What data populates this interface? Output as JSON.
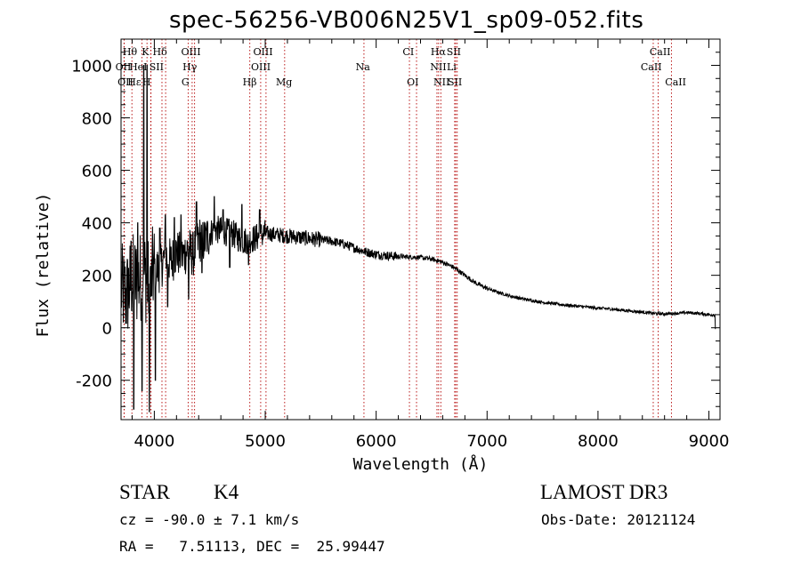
{
  "chart_data": {
    "type": "line",
    "title": "spec-56256-VB006N25V1_sp09-052.fits",
    "xlabel": "Wavelength (Å)",
    "ylabel": "Flux (relative)",
    "xlim": [
      3700,
      9100
    ],
    "ylim": [
      -350,
      1100
    ],
    "xticks": [
      4000,
      5000,
      6000,
      7000,
      8000,
      9000
    ],
    "yticks": [
      -200,
      0,
      200,
      400,
      600,
      800,
      1000
    ],
    "x_minor_step": 200,
    "y_minor_step": 50,
    "grid": false,
    "line_color": "#000000",
    "marker_color": "#b30000",
    "continuum": [
      [
        3700,
        150
      ],
      [
        3750,
        120
      ],
      [
        3800,
        190
      ],
      [
        3850,
        170
      ],
      [
        3900,
        220
      ],
      [
        3950,
        160
      ],
      [
        4000,
        230
      ],
      [
        4050,
        220
      ],
      [
        4100,
        280
      ],
      [
        4150,
        250
      ],
      [
        4200,
        290
      ],
      [
        4250,
        270
      ],
      [
        4300,
        300
      ],
      [
        4350,
        280
      ],
      [
        4400,
        340
      ],
      [
        4450,
        330
      ],
      [
        4500,
        360
      ],
      [
        4550,
        375
      ],
      [
        4600,
        370
      ],
      [
        4700,
        360
      ],
      [
        4800,
        330
      ],
      [
        4900,
        340
      ],
      [
        5000,
        360
      ],
      [
        5100,
        355
      ],
      [
        5200,
        350
      ],
      [
        5300,
        345
      ],
      [
        5400,
        340
      ],
      [
        5500,
        335
      ],
      [
        5600,
        330
      ],
      [
        5700,
        320
      ],
      [
        5800,
        305
      ],
      [
        5900,
        290
      ],
      [
        6000,
        280
      ],
      [
        6100,
        275
      ],
      [
        6200,
        272
      ],
      [
        6300,
        270
      ],
      [
        6400,
        268
      ],
      [
        6500,
        262
      ],
      [
        6600,
        250
      ],
      [
        6700,
        230
      ],
      [
        6800,
        200
      ],
      [
        6900,
        170
      ],
      [
        7000,
        150
      ],
      [
        7100,
        135
      ],
      [
        7200,
        122
      ],
      [
        7300,
        112
      ],
      [
        7400,
        104
      ],
      [
        7500,
        97
      ],
      [
        7600,
        92
      ],
      [
        7700,
        87
      ],
      [
        7800,
        83
      ],
      [
        7900,
        79
      ],
      [
        8000,
        75
      ],
      [
        8100,
        72
      ],
      [
        8200,
        68
      ],
      [
        8300,
        64
      ],
      [
        8400,
        60
      ],
      [
        8500,
        55
      ],
      [
        8600,
        53
      ],
      [
        8700,
        55
      ],
      [
        8800,
        58
      ],
      [
        8900,
        55
      ],
      [
        9000,
        50
      ]
    ],
    "spikes": [
      [
        3790,
        330
      ],
      [
        3815,
        -310
      ],
      [
        3850,
        400
      ],
      [
        3890,
        -240
      ],
      [
        3905,
        1000
      ],
      [
        3935,
        1000
      ],
      [
        3955,
        -320
      ],
      [
        3970,
        120
      ],
      [
        4010,
        -200
      ],
      [
        4050,
        380
      ],
      [
        4100,
        430
      ],
      [
        4120,
        80
      ],
      [
        4180,
        420
      ],
      [
        4240,
        430
      ],
      [
        4310,
        110
      ],
      [
        4380,
        480
      ],
      [
        4430,
        210
      ],
      [
        4540,
        500
      ],
      [
        4620,
        450
      ],
      [
        4680,
        230
      ],
      [
        4790,
        470
      ],
      [
        4850,
        240
      ],
      [
        4950,
        450
      ]
    ],
    "noise": [
      {
        "from": 3700,
        "to": 4000,
        "amp": 180
      },
      {
        "from": 4000,
        "to": 4500,
        "amp": 90
      },
      {
        "from": 4500,
        "to": 5000,
        "amp": 55
      },
      {
        "from": 5000,
        "to": 5500,
        "amp": 30
      },
      {
        "from": 5500,
        "to": 6200,
        "amp": 18
      },
      {
        "from": 6200,
        "to": 7000,
        "amp": 9
      },
      {
        "from": 7000,
        "to": 9050,
        "amp": 6
      }
    ],
    "lines": [
      {
        "label": "Hθ",
        "x": 3798,
        "row": 1,
        "cx": 3780
      },
      {
        "label": "K",
        "x": 3934,
        "row": 1,
        "cx": 3920
      },
      {
        "label": "Hδ",
        "x": 4102,
        "row": 1,
        "cx": 4050
      },
      {
        "label": "OIII",
        "x": 4363,
        "row": 1,
        "cx": 4330
      },
      {
        "label": "OIII",
        "x": 4959,
        "row": 1,
        "cx": 4980
      },
      {
        "label": "CI",
        "x": 6300,
        "row": 1,
        "cx": 6290
      },
      {
        "label": "Hα",
        "x": 6563,
        "row": 1,
        "cx": 6560
      },
      {
        "label": "SII",
        "x": 6717,
        "row": 1,
        "cx": 6700
      },
      {
        "label": "CaII",
        "x": 8542,
        "row": 1,
        "cx": 8560
      },
      {
        "label": "OII",
        "x": 3727,
        "row": 2,
        "cx": 3720
      },
      {
        "label": "HeI",
        "x": 3889,
        "row": 2,
        "cx": 3855
      },
      {
        "label": "SII",
        "x": 4069,
        "row": 2,
        "cx": 4020
      },
      {
        "label": "Hγ",
        "x": 4341,
        "row": 2,
        "cx": 4320
      },
      {
        "label": "OIII",
        "x": 5007,
        "row": 2,
        "cx": 4960
      },
      {
        "label": "Na",
        "x": 5890,
        "row": 2,
        "cx": 5880
      },
      {
        "label": "NII",
        "x": 6548,
        "row": 2,
        "cx": 6560
      },
      {
        "label": "Li",
        "x": 6708,
        "row": 2,
        "cx": 6680
      },
      {
        "label": "CaII",
        "x": 8498,
        "row": 2,
        "cx": 8480
      },
      {
        "label": "OII",
        "x": 3729,
        "row": 3,
        "cx": 3740
      },
      {
        "label": "Hε",
        "x": 3970,
        "row": 3,
        "cx": 3820
      },
      {
        "label": "H",
        "x": 3968,
        "row": 3,
        "cx": 3930
      },
      {
        "label": "G",
        "x": 4305,
        "row": 3,
        "cx": 4280
      },
      {
        "label": "Hβ",
        "x": 4861,
        "row": 3,
        "cx": 4860
      },
      {
        "label": "Mg",
        "x": 5175,
        "row": 3,
        "cx": 5170
      },
      {
        "label": "OI",
        "x": 6364,
        "row": 3,
        "cx": 6330
      },
      {
        "label": "NII",
        "x": 6583,
        "row": 3,
        "cx": 6590
      },
      {
        "label": "SII",
        "x": 6731,
        "row": 3,
        "cx": 6710
      },
      {
        "label": "CaII",
        "x": 8662,
        "row": 3,
        "cx": 8700
      }
    ]
  },
  "info": {
    "class": "STAR",
    "subclass": "K4",
    "survey": "LAMOST DR3",
    "cz": "cz = -90.0 ± 7.1 km/s",
    "obs_date": "Obs-Date: 20121124",
    "coords": "RA =   7.51113, DEC =  25.99447"
  }
}
